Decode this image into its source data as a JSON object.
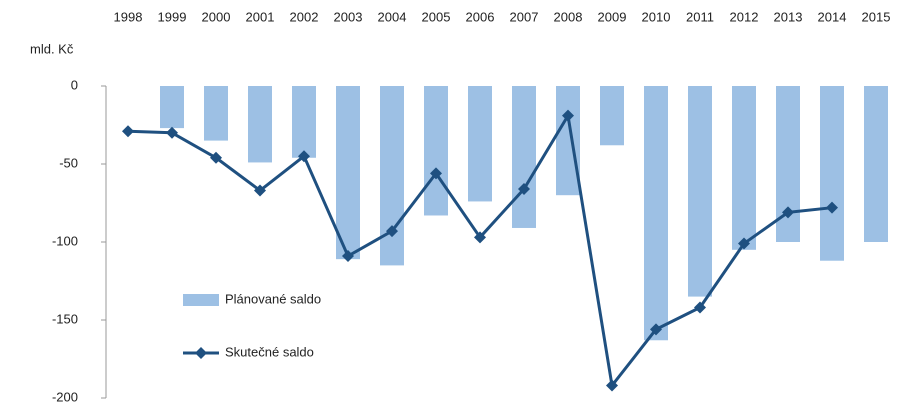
{
  "chart_data": {
    "type": "bar",
    "y_label": "mld. Kč",
    "categories": [
      "1998",
      "1999",
      "2000",
      "2001",
      "2002",
      "2003",
      "2004",
      "2005",
      "2006",
      "2007",
      "2008",
      "2009",
      "2010",
      "2011",
      "2012",
      "2013",
      "2014",
      "2015"
    ],
    "series": [
      {
        "name": "Plánované saldo",
        "type": "bar",
        "color": "#9dc0e4",
        "values": [
          null,
          -27,
          -35,
          -49,
          -46,
          -111,
          -115,
          -83,
          -74,
          -91,
          -70,
          -38,
          -163,
          -135,
          -105,
          -100,
          -112,
          -100
        ]
      },
      {
        "name": "Skutečné saldo",
        "type": "line",
        "color": "#1f5080",
        "values": [
          -29,
          -30,
          -46,
          -67,
          -45,
          -109,
          -93,
          -56,
          -97,
          -66,
          -19,
          -192,
          -156,
          -142,
          -101,
          -81,
          -78,
          null
        ]
      }
    ],
    "ylim": [
      -200,
      0
    ],
    "yticks": [
      0,
      -50,
      -100,
      -150,
      -200
    ]
  }
}
